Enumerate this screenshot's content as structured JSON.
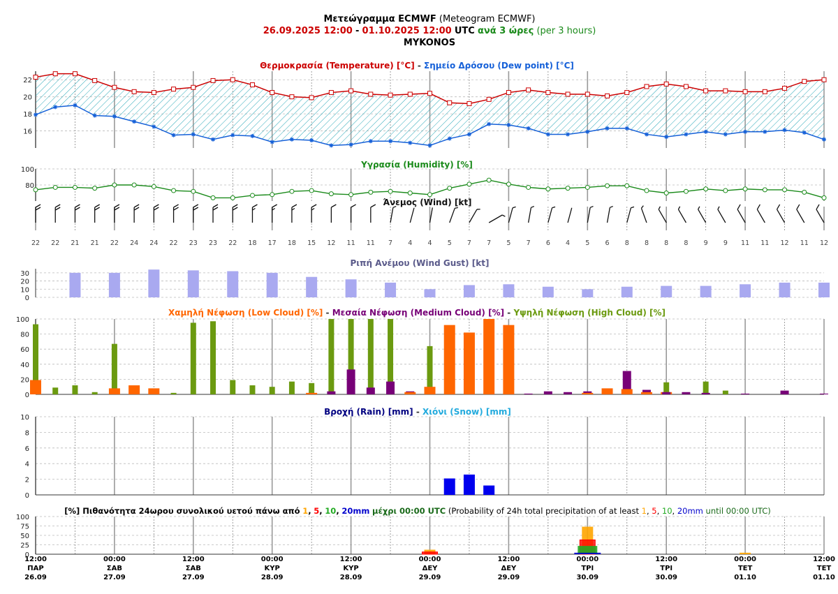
{
  "header": {
    "title_bold": "Μετεώγραμμα ECMWF",
    "title_normal": "(Meteogram ECMWF)",
    "date_start": "26.09.2025 12:00",
    "dash": "-",
    "date_end": "01.10.2025 12:00",
    "utc": "UTC",
    "interval_bold": "ανά 3 ώρες",
    "interval_normal": "(per 3 hours)",
    "location": "MYKONOS"
  },
  "colors": {
    "temperature": "#cc0000",
    "dewpoint": "#1560d8",
    "humidity": "#1a8a1a",
    "gust": "#a9a9f0",
    "gust_title": "#5a5a8a",
    "low_cloud": "#ff6600",
    "medium_cloud": "#770077",
    "high_cloud": "#6b9a10",
    "rain": "#0000ee",
    "rain_title": "#000080",
    "snow": "#22aadd",
    "prob_1": "#ffa500",
    "prob_5": "#ff0000",
    "prob_10": "#22aa22",
    "prob_20": "#0000cc"
  },
  "panels": {
    "temp_title_a": "Θερμοκρασία (Temperature) [°C]",
    "temp_sep": "-",
    "temp_title_b": "Σημείο Δρόσου (Dew point) [°C]",
    "humidity_title": "Υγρασία (Humidity) [%]",
    "wind_title": "Άνεμος (Wind) [kt]",
    "gust_title": "Ριπή Ανέμου (Wind Gust) [kt]",
    "cloud_title_low": "Χαμηλή Νέφωση (Low Cloud) [%]",
    "cloud_sep1": "-",
    "cloud_title_med": "Μεσαία Νέφωση (Medium Cloud) [%]",
    "cloud_sep2": "-",
    "cloud_title_high": "Υψηλή Νέφωση (High Cloud) [%]",
    "rain_title": "Βροχή (Rain) [mm]",
    "rain_sep": "-",
    "snow_title": "Χιόνι (Snow) [mm]",
    "prob_title_bold": "[%] Πιθανότητα 24ωρου συνολικού υετού πάνω από",
    "prob_t1": "1",
    "prob_c1": ",",
    "prob_t5": "5",
    "prob_c2": ",",
    "prob_t10": "10",
    "prob_c3": ",",
    "prob_t20": "20mm",
    "prob_until": "μέχρι 00:00 UTC",
    "prob_normal_a": "(Probability of 24h total precipitation of at least",
    "prob_n1": "1",
    "prob_nc1": ",",
    "prob_n5": "5",
    "prob_nc2": ",",
    "prob_n10": "10",
    "prob_nc3": ",",
    "prob_n20": "20mm",
    "prob_normal_b": "until 00:00 UTC)"
  },
  "chart_data": [
    {
      "type": "line",
      "title": "Θερμοκρασία (Temperature) [°C] - Σημείο Δρόσου (Dew point) [°C]",
      "x_step_hours": 3,
      "ylim": [
        14,
        23
      ],
      "yticks": [
        "16",
        "18",
        "20",
        "22"
      ],
      "series": [
        {
          "name": "Θερμοκρασία (Temperature)",
          "values": [
            22.3,
            22.7,
            22.7,
            21.9,
            21.1,
            20.6,
            20.5,
            20.9,
            21.1,
            21.9,
            22.0,
            21.4,
            20.5,
            20.0,
            19.9,
            20.5,
            20.7,
            20.3,
            20.2,
            20.3,
            20.4,
            19.3,
            19.2,
            19.7,
            20.5,
            20.8,
            20.5,
            20.3,
            20.3,
            20.1,
            20.5,
            21.2,
            21.5,
            21.2,
            20.7,
            20.7,
            20.6,
            20.6,
            21.0,
            21.8,
            22.0
          ]
        },
        {
          "name": "Σημείο Δρόσου (Dew point)",
          "values": [
            17.9,
            18.8,
            19.0,
            17.8,
            17.7,
            17.1,
            16.5,
            15.5,
            15.6,
            15.0,
            15.5,
            15.4,
            14.7,
            15.0,
            14.9,
            14.3,
            14.4,
            14.8,
            14.8,
            14.6,
            14.3,
            15.1,
            15.6,
            16.8,
            16.7,
            16.3,
            15.6,
            15.6,
            15.9,
            16.3,
            16.3,
            15.6,
            15.3,
            15.6,
            15.9,
            15.6,
            15.9,
            15.9,
            16.1,
            15.8,
            15.0
          ]
        }
      ]
    },
    {
      "type": "line",
      "title": "Υγρασία (Humidity) [%]",
      "ylim": [
        60,
        100
      ],
      "yticks": [
        "80",
        "100"
      ],
      "series": [
        {
          "name": "Υγρασία (Humidity)",
          "values": [
            74,
            77,
            77,
            76,
            80,
            80,
            78,
            73,
            72,
            64,
            64,
            67,
            68,
            72,
            73,
            69,
            68,
            71,
            72,
            70,
            68,
            76,
            81,
            86,
            81,
            77,
            75,
            76,
            77,
            79,
            79,
            73,
            70,
            72,
            75,
            73,
            75,
            74,
            74,
            71,
            64
          ]
        }
      ]
    },
    {
      "type": "table",
      "title": "Άνεμος (Wind) [kt]",
      "speed": [
        "22",
        "22",
        "21",
        "21",
        "22",
        "24",
        "24",
        "22",
        "23",
        "23",
        "22",
        "18",
        "17",
        "18",
        "15",
        "12",
        "11",
        "11",
        "7",
        "4",
        "4",
        "5",
        "7",
        "7",
        "5",
        "7",
        "6",
        "4",
        "5",
        "6",
        "8",
        "8",
        "8",
        "8",
        "9",
        "9",
        "11",
        "11",
        "12",
        "11",
        "12"
      ],
      "direction_deg": [
        0,
        0,
        0,
        0,
        0,
        0,
        0,
        0,
        0,
        0,
        0,
        0,
        0,
        0,
        0,
        0,
        0,
        0,
        10,
        15,
        10,
        20,
        30,
        60,
        15,
        10,
        15,
        15,
        10,
        10,
        15,
        340,
        330,
        330,
        330,
        330,
        330,
        330,
        330,
        330,
        330
      ]
    },
    {
      "type": "bar",
      "title": "Ριπή Ανέμου (Wind Gust) [kt]",
      "ylim": [
        0,
        35
      ],
      "yticks": [
        "0",
        "10",
        "20",
        "30"
      ],
      "series": [
        {
          "name": "Ριπή Ανέμου (Wind Gust)",
          "values": [
            30,
            30,
            34,
            33,
            32,
            30,
            25,
            22,
            18,
            10,
            15,
            16,
            13,
            10,
            13,
            14,
            14,
            16,
            18,
            18
          ]
        }
      ]
    },
    {
      "type": "bar",
      "title": "Χαμηλή Νέφωση (Low Cloud) [%] - Μεσαία Νέφωση (Medium Cloud) [%] - Υψηλή Νέφωση (High Cloud) [%]",
      "ylim": [
        0,
        100
      ],
      "yticks": [
        "0",
        "20",
        "40",
        "60",
        "80",
        "100"
      ],
      "series": [
        {
          "name": "Χαμηλή Νέφωση (Low Cloud)",
          "values": [
            19,
            0,
            0,
            0,
            8,
            12,
            8,
            0,
            0,
            0,
            0,
            0,
            0,
            0,
            2,
            0,
            0,
            0,
            0,
            3,
            10,
            92,
            82,
            100,
            92,
            0,
            0,
            0,
            2,
            8,
            7,
            3,
            3,
            0,
            0,
            0,
            0,
            0,
            0,
            0,
            0
          ]
        },
        {
          "name": "Μεσαία Νέφωση (Medium Cloud)",
          "values": [
            0,
            0,
            0,
            0,
            0,
            0,
            0,
            0,
            0,
            0,
            0,
            0,
            0,
            0,
            0,
            4,
            33,
            9,
            17,
            4,
            0,
            0,
            0,
            0,
            0,
            1,
            4,
            3,
            4,
            0,
            31,
            6,
            3,
            3,
            2,
            0,
            1,
            0,
            5,
            0,
            1
          ]
        },
        {
          "name": "Υψηλή Νέφωση (High Cloud)",
          "values": [
            93,
            9,
            12,
            3,
            67,
            0,
            0,
            2,
            95,
            97,
            19,
            12,
            10,
            17,
            15,
            100,
            100,
            100,
            100,
            0,
            64,
            0,
            0,
            0,
            0,
            0,
            0,
            0,
            0,
            0,
            0,
            0,
            16,
            0,
            17,
            5,
            0,
            0,
            0,
            0,
            0
          ]
        }
      ]
    },
    {
      "type": "bar",
      "title": "Βροχή (Rain) [mm] - Χιόνι (Snow) [mm]",
      "ylim": [
        0,
        10
      ],
      "yticks": [
        "0",
        "2",
        "4",
        "6",
        "8",
        "10"
      ],
      "series": [
        {
          "name": "Βροχή (Rain)",
          "values": [
            0,
            0,
            0,
            0,
            0,
            0,
            0,
            0,
            0,
            0,
            0,
            0,
            0,
            0,
            0,
            0,
            0,
            0,
            0,
            0,
            0,
            2.1,
            2.6,
            1.2,
            0,
            0,
            0,
            0,
            0,
            0,
            0,
            0,
            0,
            0,
            0,
            0,
            0,
            0,
            0,
            0,
            0
          ]
        },
        {
          "name": "Χιόνι (Snow)",
          "values": [
            0,
            0,
            0,
            0,
            0,
            0,
            0,
            0,
            0,
            0,
            0,
            0,
            0,
            0,
            0,
            0,
            0,
            0,
            0,
            0,
            0,
            0,
            0,
            0,
            0,
            0,
            0,
            0,
            0,
            0,
            0,
            0,
            0,
            0,
            0,
            0,
            0,
            0,
            0,
            0,
            0
          ]
        }
      ]
    },
    {
      "type": "bar",
      "title": "[%] Πιθανότητα 24ωρου συνολικού υετού πάνω από 1, 5, 10, 20mm μέχρι 00:00 UTC",
      "categories": [
        "ΔΕΥ 29.09",
        "ΤΡΙ 30.09",
        "ΤΕΤ 01.10"
      ],
      "ylim": [
        0,
        100
      ],
      "yticks": [
        "0",
        "25",
        "50",
        "75",
        "100"
      ],
      "series": [
        {
          "name": "1",
          "values": [
            12,
            73,
            4
          ]
        },
        {
          "name": "5",
          "values": [
            6,
            38,
            0
          ]
        },
        {
          "name": "10",
          "values": [
            0,
            22,
            0
          ]
        },
        {
          "name": "20mm",
          "values": [
            0,
            4,
            0
          ]
        }
      ]
    }
  ],
  "x_axis": {
    "ticks": [
      {
        "time": "12:00",
        "day": "ΠΑΡ",
        "date": "26.09"
      },
      {
        "time": "00:00",
        "day": "ΣΑΒ",
        "date": "27.09"
      },
      {
        "time": "12:00",
        "day": "ΣΑΒ",
        "date": "27.09"
      },
      {
        "time": "00:00",
        "day": "ΚΥΡ",
        "date": "28.09"
      },
      {
        "time": "12:00",
        "day": "ΚΥΡ",
        "date": "28.09"
      },
      {
        "time": "00:00",
        "day": "ΔΕΥ",
        "date": "29.09"
      },
      {
        "time": "12:00",
        "day": "ΔΕΥ",
        "date": "29.09"
      },
      {
        "time": "00:00",
        "day": "ΤΡΙ",
        "date": "30.09"
      },
      {
        "time": "12:00",
        "day": "ΤΡΙ",
        "date": "30.09"
      },
      {
        "time": "00:00",
        "day": "ΤΕΤ",
        "date": "01.10"
      },
      {
        "time": "12:00",
        "day": "ΤΕΤ",
        "date": "01.10"
      }
    ]
  }
}
